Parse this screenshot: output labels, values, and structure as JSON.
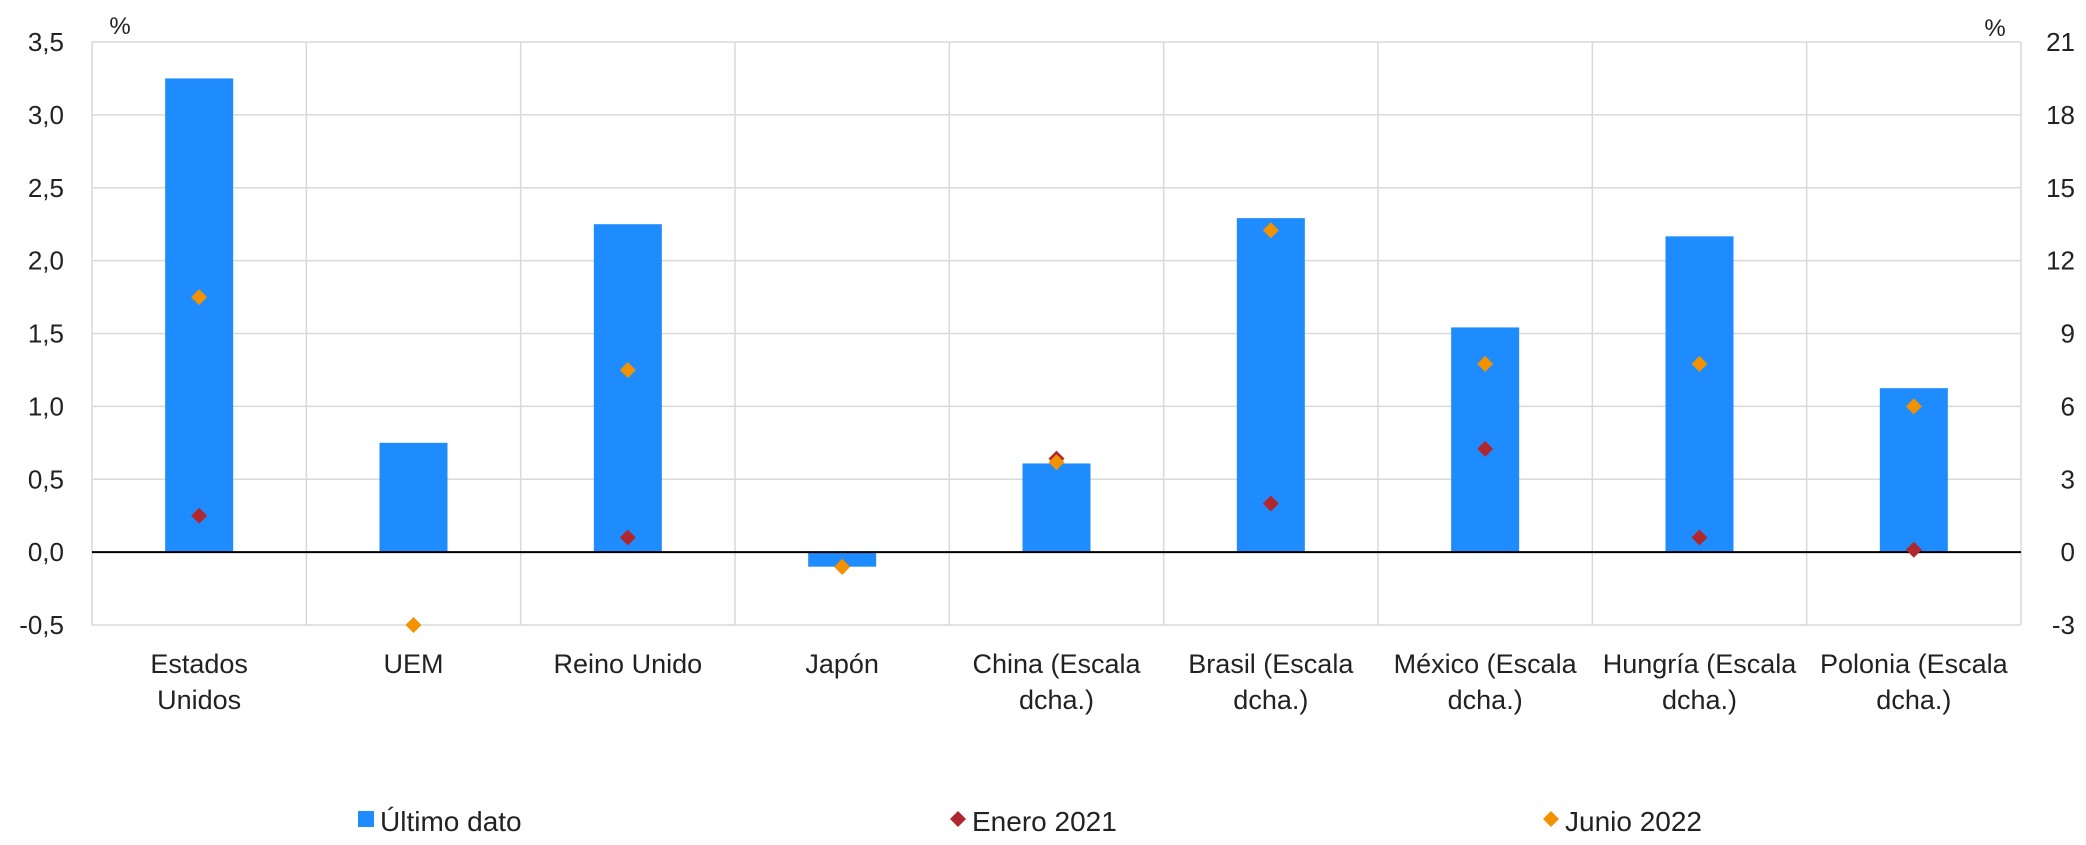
{
  "chart_data": {
    "type": "bar",
    "categories": [
      [
        "Estados",
        "Unidos"
      ],
      [
        "UEM"
      ],
      [
        "Reino Unido"
      ],
      [
        "Japón"
      ],
      [
        "China (Escala",
        "dcha.)"
      ],
      [
        "Brasil (Escala",
        "dcha.)"
      ],
      [
        "México (Escala",
        "dcha.)"
      ],
      [
        "Hungría (Escala",
        "dcha.)"
      ],
      [
        "Polonia (Escala",
        "dcha.)"
      ]
    ],
    "axis_assignment": [
      "left",
      "left",
      "left",
      "left",
      "right",
      "right",
      "right",
      "right",
      "right"
    ],
    "series": [
      {
        "name": "Último dato",
        "kind": "bar",
        "color": "#1e8cff",
        "values": [
          3.25,
          0.75,
          2.25,
          -0.1,
          3.65,
          13.75,
          9.25,
          13.0,
          6.75
        ]
      },
      {
        "name": "Enero 2021",
        "kind": "marker",
        "color": "#b0282e",
        "values": [
          0.25,
          null,
          0.1,
          -0.1,
          3.85,
          2.0,
          4.25,
          0.6,
          0.1
        ]
      },
      {
        "name": "Junio 2022",
        "kind": "marker",
        "color": "#f39200",
        "values": [
          1.75,
          -0.5,
          1.25,
          -0.1,
          3.7,
          13.25,
          7.75,
          7.75,
          6.0
        ]
      }
    ],
    "y_left": {
      "unit": "%",
      "min": -0.5,
      "max": 3.5,
      "ticks": [
        "-0,5",
        "0,0",
        "0,5",
        "1,0",
        "1,5",
        "2,0",
        "2,5",
        "3,0",
        "3,5"
      ]
    },
    "y_right": {
      "unit": "%",
      "min": -3,
      "max": 21,
      "ticks": [
        "-3",
        "0",
        "3",
        "6",
        "9",
        "12",
        "15",
        "18",
        "21"
      ]
    },
    "grid": true,
    "legend_position": "bottom"
  }
}
